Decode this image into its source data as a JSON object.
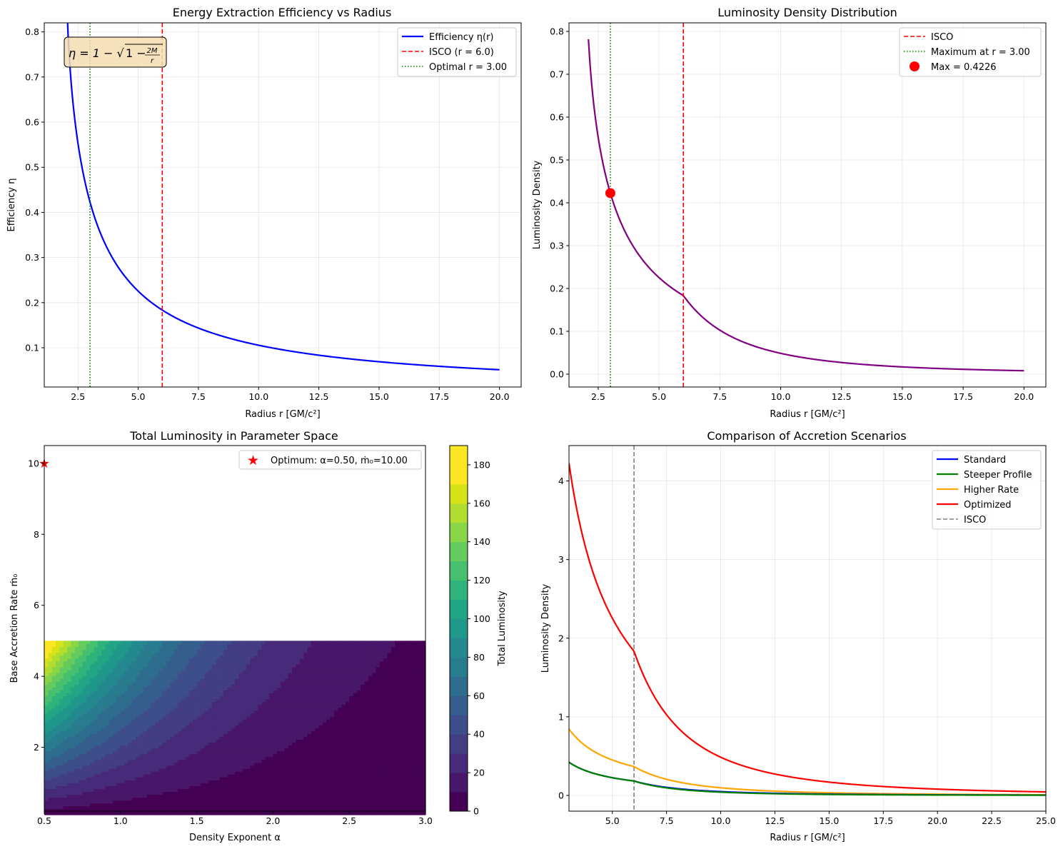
{
  "chart_data": [
    {
      "type": "line",
      "title": "Energy Extraction Efficiency vs Radius",
      "xlabel": "Radius r [GM/c²]",
      "ylabel": "Efficiency η",
      "xlim": [
        1.1,
        20.9
      ],
      "ylim": [
        0.013,
        0.82
      ],
      "xticks": [
        2.5,
        5.0,
        7.5,
        10.0,
        12.5,
        15.0,
        17.5,
        20.0
      ],
      "xtick_labels": [
        "2.5",
        "5.0",
        "7.5",
        "10.0",
        "12.5",
        "15.0",
        "17.5",
        "20.0"
      ],
      "yticks": [
        0.1,
        0.2,
        0.3,
        0.4,
        0.5,
        0.6,
        0.7,
        0.8
      ],
      "ytick_labels": [
        "0.1",
        "0.2",
        "0.3",
        "0.4",
        "0.5",
        "0.6",
        "0.7",
        "0.8"
      ],
      "formula_pre": "η = 1 − √",
      "formula_mid": "1 − ",
      "formula_num": "2M",
      "formula_den": "r",
      "curve_r_range": [
        2.0,
        20.0
      ],
      "series": [
        {
          "name": "Efficiency η(r)",
          "color": "#0000ff",
          "kind": "curve",
          "formula": "1-sqrt(1-2/r)"
        },
        {
          "name": "ISCO (r = 6.0)",
          "color": "#ff0000",
          "kind": "vline",
          "x": 6.0,
          "dash": "dashed"
        },
        {
          "name": "Optimal r = 3.00",
          "color": "#008000",
          "kind": "vline",
          "x": 3.0,
          "dash": "dotted"
        }
      ],
      "legend": "top-right"
    },
    {
      "type": "line",
      "title": "Luminosity Density Distribution",
      "xlabel": "Radius r [GM/c²]",
      "ylabel": "Luminosity Density",
      "xlim": [
        1.3,
        20.9
      ],
      "ylim": [
        -0.03,
        0.82
      ],
      "xticks": [
        2.5,
        5.0,
        7.5,
        10.0,
        12.5,
        15.0,
        17.5,
        20.0
      ],
      "xtick_labels": [
        "2.5",
        "5.0",
        "7.5",
        "10.0",
        "12.5",
        "15.0",
        "17.5",
        "20.0"
      ],
      "yticks": [
        0.0,
        0.1,
        0.2,
        0.3,
        0.4,
        0.5,
        0.6,
        0.7,
        0.8
      ],
      "ytick_labels": [
        "0.0",
        "0.1",
        "0.2",
        "0.3",
        "0.4",
        "0.5",
        "0.6",
        "0.7",
        "0.8"
      ],
      "curve_r_range": [
        2.1,
        20.0
      ],
      "series": [
        {
          "name": "Luminosity",
          "color": "#800080",
          "kind": "curve",
          "formula": "lum",
          "in_legend": false
        },
        {
          "name": "ISCO",
          "color": "#ff0000",
          "kind": "vline",
          "x": 6.0,
          "dash": "dashed"
        },
        {
          "name": "Maximum at r = 3.00",
          "color": "#008000",
          "kind": "vline",
          "x": 3.0,
          "dash": "dotted"
        },
        {
          "name": "Max = 0.4226",
          "color": "#ff0000",
          "kind": "point",
          "x": 3.0,
          "y": 0.4226
        }
      ],
      "legend": "top-right"
    },
    {
      "type": "heatmap",
      "title": "Total Luminosity in Parameter Space",
      "xlabel": "Density Exponent α",
      "ylabel": "Base Accretion Rate ṁ₀",
      "xlim": [
        0.5,
        3.0
      ],
      "ylim": [
        0.2,
        10.5
      ],
      "data_ylim": [
        0.1,
        5.0
      ],
      "xticks": [
        0.5,
        1.0,
        1.5,
        2.0,
        2.5,
        3.0
      ],
      "xtick_labels": [
        "0.5",
        "1.0",
        "1.5",
        "2.0",
        "2.5",
        "3.0"
      ],
      "yticks": [
        2,
        4,
        6,
        8,
        10
      ],
      "ytick_labels": [
        "2",
        "4",
        "6",
        "8",
        "10"
      ],
      "colorbar_label": "Total Luminosity",
      "colorbar_range": [
        0,
        190
      ],
      "colorbar_ticks": [
        0,
        20,
        40,
        60,
        80,
        100,
        120,
        140,
        160,
        180
      ],
      "colorbar_tick_labels": [
        "0",
        "20",
        "40",
        "60",
        "80",
        "100",
        "120",
        "140",
        "160",
        "180"
      ],
      "levels": 19,
      "model": "L = 38 * mdot * 2.5^(-(alpha-0.5)) roughly",
      "colors": [
        "#440154",
        "#481769",
        "#472a7a",
        "#433d84",
        "#3d4e8a",
        "#355e8d",
        "#2e6d8e",
        "#297b8e",
        "#23898e",
        "#1f978b",
        "#21a585",
        "#2eb37c",
        "#46c06f",
        "#65cb5e",
        "#89d548",
        "#b0dd2f",
        "#d8e219",
        "#fde725",
        "#fde725"
      ],
      "optimum": {
        "name": "Optimum: α=0.50, ṁ₀=10.00",
        "x": 0.5,
        "y": 10.0,
        "color": "#ff0000"
      },
      "legend": "top-right"
    },
    {
      "type": "line",
      "title": "Comparison of Accretion Scenarios",
      "xlabel": "Radius r [GM/c²]",
      "ylabel": "Luminosity Density",
      "xlim": [
        3.0,
        25.0
      ],
      "ylim": [
        -0.2,
        4.45
      ],
      "xticks": [
        5.0,
        7.5,
        10.0,
        12.5,
        15.0,
        17.5,
        20.0,
        22.5,
        25.0
      ],
      "xtick_labels": [
        "5.0",
        "7.5",
        "10.0",
        "12.5",
        "15.0",
        "17.5",
        "20.0",
        "22.5",
        "25.0"
      ],
      "yticks": [
        0,
        1,
        2,
        3,
        4
      ],
      "ytick_labels": [
        "0",
        "1",
        "2",
        "3",
        "4"
      ],
      "curve_r_range": [
        3.0,
        25.0
      ],
      "series": [
        {
          "name": "Standard",
          "color": "#0000ff",
          "kind": "curve",
          "scale": 1.0,
          "steep": false
        },
        {
          "name": "Steeper Profile",
          "color": "#008000",
          "kind": "curve",
          "scale": 1.0,
          "steep": true
        },
        {
          "name": "Higher Rate",
          "color": "#ffa500",
          "kind": "curve",
          "scale": 2.0,
          "steep": false
        },
        {
          "name": "Optimized",
          "color": "#ff0000",
          "kind": "curve",
          "scale": 10.0,
          "steep": false
        },
        {
          "name": "ISCO",
          "color": "#808080",
          "kind": "vline",
          "x": 6.0,
          "dash": "dashed"
        }
      ],
      "legend": "top-right"
    }
  ]
}
